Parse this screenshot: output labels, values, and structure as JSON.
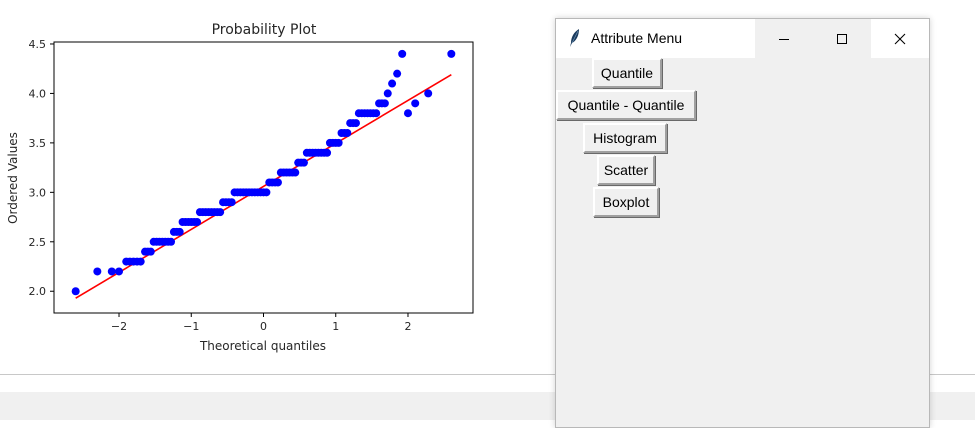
{
  "plot": {
    "title": "Probability Plot",
    "xlabel": "Theoretical quantiles",
    "ylabel": "Ordered Values"
  },
  "chart_data": {
    "type": "scatter",
    "title": "Probability Plot",
    "xlabel": "Theoretical quantiles",
    "ylabel": "Ordered Values",
    "xlim": [
      -2.9,
      2.9
    ],
    "ylim": [
      1.78,
      4.52
    ],
    "xticks": [
      -2,
      -1,
      0,
      1,
      2
    ],
    "xtick_labels": [
      "−2",
      "−1",
      "0",
      "1",
      "2"
    ],
    "yticks": [
      2.0,
      2.5,
      3.0,
      3.5,
      4.0,
      4.5
    ],
    "ytick_labels": [
      "2.0",
      "2.5",
      "3.0",
      "3.5",
      "4.0",
      "4.5"
    ],
    "point_color": "#0000ff",
    "fit_color": "#ff0000",
    "fit_line": {
      "x": [
        -2.6,
        2.6
      ],
      "y": [
        1.93,
        4.19
      ]
    },
    "points": {
      "x": [
        -2.6,
        -2.3,
        -2.1,
        -2.0,
        -1.9,
        -1.85,
        -1.8,
        -1.75,
        -1.7,
        -1.64,
        -1.6,
        -1.56,
        -1.52,
        -1.48,
        -1.44,
        -1.4,
        -1.36,
        -1.32,
        -1.28,
        -1.24,
        -1.2,
        -1.16,
        -1.12,
        -1.08,
        -1.04,
        -1.0,
        -0.96,
        -0.92,
        -0.88,
        -0.84,
        -0.8,
        -0.76,
        -0.72,
        -0.68,
        -0.64,
        -0.6,
        -0.56,
        -0.52,
        -0.48,
        -0.44,
        -0.4,
        -0.36,
        -0.32,
        -0.28,
        -0.24,
        -0.2,
        -0.16,
        -0.12,
        -0.08,
        -0.04,
        0.0,
        0.04,
        0.08,
        0.12,
        0.16,
        0.2,
        0.24,
        0.28,
        0.32,
        0.36,
        0.4,
        0.44,
        0.48,
        0.52,
        0.56,
        0.6,
        0.64,
        0.68,
        0.72,
        0.76,
        0.8,
        0.84,
        0.88,
        0.92,
        0.96,
        1.0,
        1.04,
        1.08,
        1.12,
        1.16,
        1.2,
        1.24,
        1.28,
        1.32,
        1.36,
        1.4,
        1.44,
        1.48,
        1.52,
        1.56,
        1.6,
        1.64,
        1.68,
        1.72,
        1.78,
        1.85,
        1.92,
        2.0,
        2.1,
        2.28,
        2.6
      ],
      "y": [
        2.0,
        2.2,
        2.2,
        2.2,
        2.3,
        2.3,
        2.3,
        2.3,
        2.3,
        2.4,
        2.4,
        2.4,
        2.5,
        2.5,
        2.5,
        2.5,
        2.5,
        2.5,
        2.5,
        2.6,
        2.6,
        2.6,
        2.7,
        2.7,
        2.7,
        2.7,
        2.7,
        2.7,
        2.8,
        2.8,
        2.8,
        2.8,
        2.8,
        2.8,
        2.8,
        2.8,
        2.9,
        2.9,
        2.9,
        2.9,
        3.0,
        3.0,
        3.0,
        3.0,
        3.0,
        3.0,
        3.0,
        3.0,
        3.0,
        3.0,
        3.0,
        3.0,
        3.1,
        3.1,
        3.1,
        3.1,
        3.2,
        3.2,
        3.2,
        3.2,
        3.2,
        3.2,
        3.3,
        3.3,
        3.3,
        3.4,
        3.4,
        3.4,
        3.4,
        3.4,
        3.4,
        3.4,
        3.4,
        3.5,
        3.5,
        3.5,
        3.5,
        3.6,
        3.6,
        3.6,
        3.7,
        3.7,
        3.7,
        3.8,
        3.8,
        3.8,
        3.8,
        3.8,
        3.8,
        3.8,
        3.9,
        3.9,
        3.9,
        4.0,
        4.1,
        4.2,
        4.4,
        3.8,
        3.9,
        4.0,
        4.4
      ]
    }
  },
  "window": {
    "title": "Attribute Menu",
    "buttons": [
      "Quantile",
      "Quantile - Quantile",
      "Histogram",
      "Scatter",
      "Boxplot"
    ]
  }
}
